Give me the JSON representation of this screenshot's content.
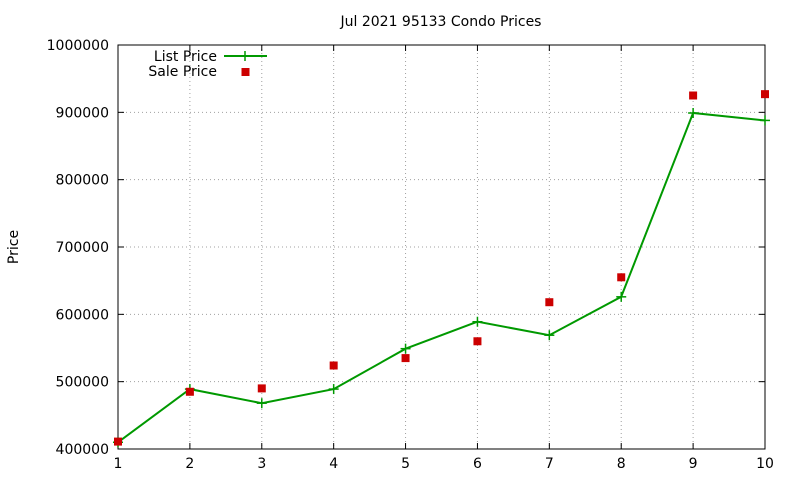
{
  "chart_data": {
    "type": "line",
    "title": "Jul 2021 95133 Condo Prices",
    "xlabel": "",
    "ylabel": "Price",
    "xlim": [
      1,
      10
    ],
    "ylim": [
      400000,
      1000000
    ],
    "x_ticks": [
      1,
      2,
      3,
      4,
      5,
      6,
      7,
      8,
      9,
      10
    ],
    "y_ticks": [
      400000,
      500000,
      600000,
      700000,
      800000,
      900000,
      1000000
    ],
    "grid": true,
    "legend_position": "top-left",
    "series": [
      {
        "name": "List Price",
        "style": "line-with-plus-markers",
        "color": "#009900",
        "x": [
          1,
          2,
          3,
          4,
          5,
          6,
          7,
          8,
          9,
          10
        ],
        "values": [
          410000,
          489000,
          468000,
          489000,
          549000,
          589000,
          569000,
          626000,
          899000,
          888000
        ]
      },
      {
        "name": "Sale Price",
        "style": "square-markers",
        "color": "#cc0000",
        "x": [
          1,
          2,
          3,
          4,
          5,
          6,
          7,
          8,
          9,
          10
        ],
        "values": [
          411000,
          485000,
          490000,
          524000,
          535000,
          560000,
          618000,
          655000,
          925000,
          927000
        ]
      }
    ]
  }
}
